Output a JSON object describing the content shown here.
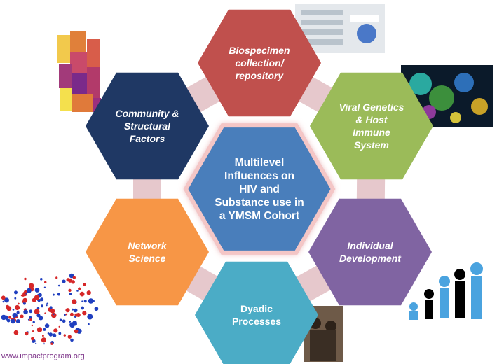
{
  "center": {
    "label": "Multilevel\nInfluences on\nHIV and\nSubstance use in\na YMSM Cohort",
    "color": "#4a7ebb"
  },
  "nodes": [
    {
      "id": "biospecimen",
      "label": "Biospecimen\ncollection/\nrepository",
      "color": "#c0504d",
      "italic": true
    },
    {
      "id": "viral-genetics",
      "label": "Viral Genetics\n& Host\nImmune\nSystem",
      "color": "#9bbb59",
      "italic": true
    },
    {
      "id": "individual-development",
      "label": "Individual\nDevelopment",
      "color": "#8064a2",
      "italic": true
    },
    {
      "id": "dyadic-processes",
      "label": "Dyadic\nProcesses",
      "color": "#4bacc6",
      "italic": false
    },
    {
      "id": "network-science",
      "label": "Network\nScience",
      "color": "#f79646",
      "italic": true
    },
    {
      "id": "community-structural",
      "label": "Community &\nStructural\nFactors",
      "color": "#1f3864",
      "italic": true
    }
  ],
  "connector_color": "#e6c8cc",
  "footer": "www.impactprogram.org"
}
